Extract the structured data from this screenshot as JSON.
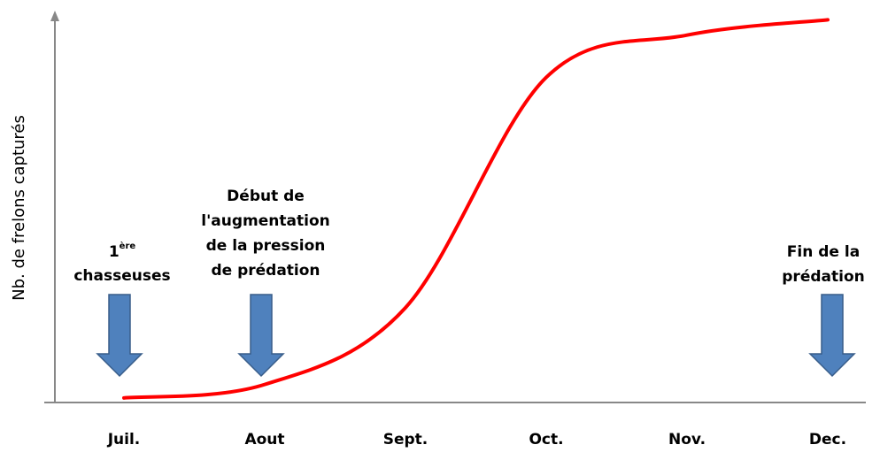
{
  "chart_data": {
    "type": "line",
    "y_label": "Nb. de frelons capturés",
    "categories": [
      "Juil.",
      "Aout",
      "Sept.",
      "Oct.",
      "Nov.",
      "Dec."
    ],
    "series": [
      {
        "color": "#ff0000",
        "values": [
          0.5,
          4,
          24,
          84,
          95,
          99
        ]
      }
    ],
    "ylim": [
      0,
      100
    ],
    "annotations": [
      {
        "lines": [
          "1",
          "ère",
          "chasseuses"
        ]
      },
      {
        "lines": [
          "Début de",
          "l'augmentation",
          "de la pression",
          "de prédation"
        ]
      },
      {
        "lines": [
          "Fin de la",
          "prédation"
        ]
      }
    ]
  }
}
